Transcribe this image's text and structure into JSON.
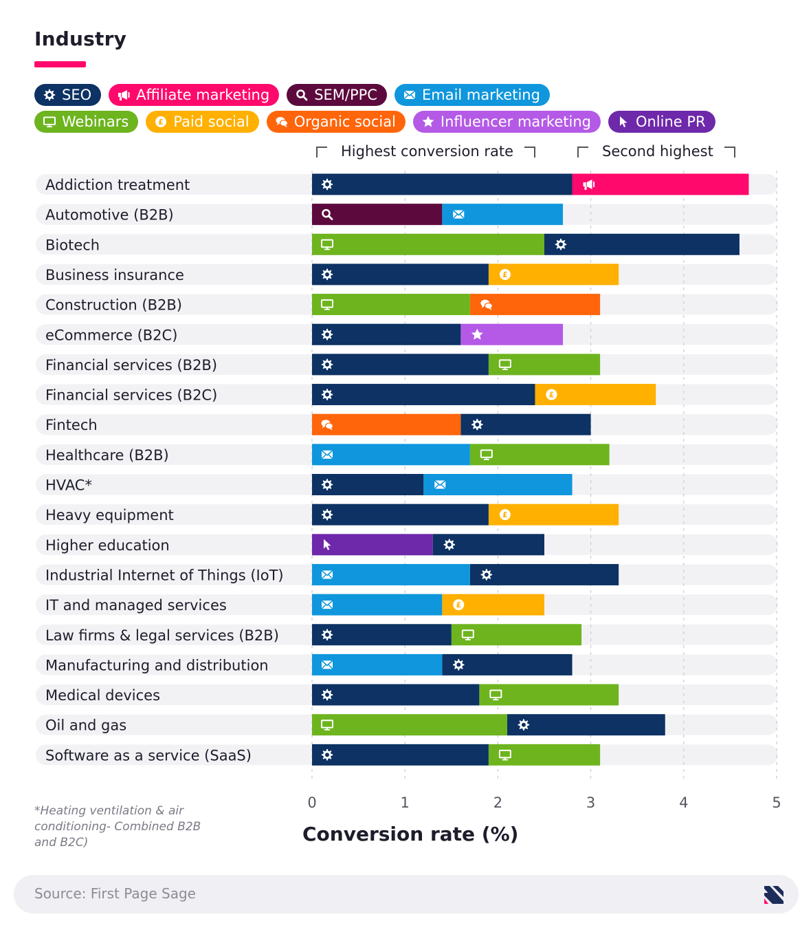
{
  "title": "Industry",
  "legend": [
    {
      "key": "seo",
      "label": "SEO",
      "color": "#0d3263",
      "icon": "gear-icon"
    },
    {
      "key": "affiliate",
      "label": "Affiliate marketing",
      "color": "#ff0a6c",
      "icon": "megaphone-icon"
    },
    {
      "key": "sem",
      "label": "SEM/PPC",
      "color": "#5c0a3d",
      "icon": "magnifier-icon"
    },
    {
      "key": "email",
      "label": "Email marketing",
      "color": "#0f96dc",
      "icon": "envelope-icon"
    },
    {
      "key": "webinars",
      "label": "Webinars",
      "color": "#6db41e",
      "icon": "monitor-icon"
    },
    {
      "key": "paid",
      "label": "Paid social",
      "color": "#ffb000",
      "icon": "coin-icon"
    },
    {
      "key": "organic",
      "label": "Organic social",
      "color": "#ff650a",
      "icon": "chat-bubbles-icon"
    },
    {
      "key": "influencer",
      "label": "Influencer marketing",
      "color": "#b45ae6",
      "icon": "star-icon"
    },
    {
      "key": "pr",
      "label": "Online PR",
      "color": "#6e28aa",
      "icon": "cursor-icon"
    }
  ],
  "headers": {
    "highest": "Highest conversion rate",
    "second": "Second highest"
  },
  "chart_data": {
    "type": "bar",
    "orientation": "horizontal",
    "stacking": "overlay",
    "xlabel": "Conversion rate (%)",
    "xlim": [
      0,
      5
    ],
    "xticks": [
      "0",
      "1",
      "2",
      "3",
      "4",
      "5"
    ],
    "grid": "dashed vertical",
    "categories": [
      "Addiction treatment",
      "Automotive (B2B)",
      "Biotech",
      "Business insurance",
      "Construction (B2B)",
      "eCommerce (B2C)",
      "Financial services (B2B)",
      "Financial services (B2C)",
      "Fintech",
      "Healthcare (B2B)",
      "HVAC*",
      "Heavy equipment",
      "Higher education",
      "Industrial Internet of Things (IoT)",
      "IT and managed services",
      "Law firms & legal services (B2B)",
      "Manufacturing and distribution",
      "Medical devices",
      "Oil and gas",
      "Software as a service (SaaS)"
    ],
    "series": [
      {
        "name": "Highest conversion rate",
        "channels": [
          "seo",
          "sem",
          "webinars",
          "seo",
          "webinars",
          "seo",
          "seo",
          "seo",
          "organic",
          "email",
          "seo",
          "seo",
          "pr",
          "email",
          "email",
          "seo",
          "email",
          "seo",
          "webinars",
          "seo"
        ],
        "values": [
          2.8,
          1.4,
          2.5,
          1.9,
          1.7,
          1.6,
          1.9,
          2.4,
          1.6,
          1.7,
          1.2,
          1.9,
          1.3,
          1.7,
          1.4,
          1.5,
          1.4,
          1.8,
          2.1,
          1.9
        ]
      },
      {
        "name": "Second highest",
        "channels": [
          "affiliate",
          "email",
          "seo",
          "paid",
          "organic",
          "influencer",
          "webinars",
          "paid",
          "seo",
          "webinars",
          "email",
          "paid",
          "seo",
          "seo",
          "paid",
          "webinars",
          "seo",
          "webinars",
          "seo",
          "webinars"
        ],
        "values": [
          4.7,
          2.7,
          4.6,
          3.3,
          3.1,
          2.7,
          3.1,
          3.7,
          3.0,
          3.2,
          2.8,
          3.3,
          2.5,
          3.3,
          2.5,
          2.9,
          2.8,
          3.3,
          3.8,
          3.1
        ]
      }
    ]
  },
  "footnote": "*Heating ventilation & air conditioning- Combined B2B and B2C)",
  "source": "Source: First Page Sage",
  "brand_logo": "brand-logo-icon"
}
